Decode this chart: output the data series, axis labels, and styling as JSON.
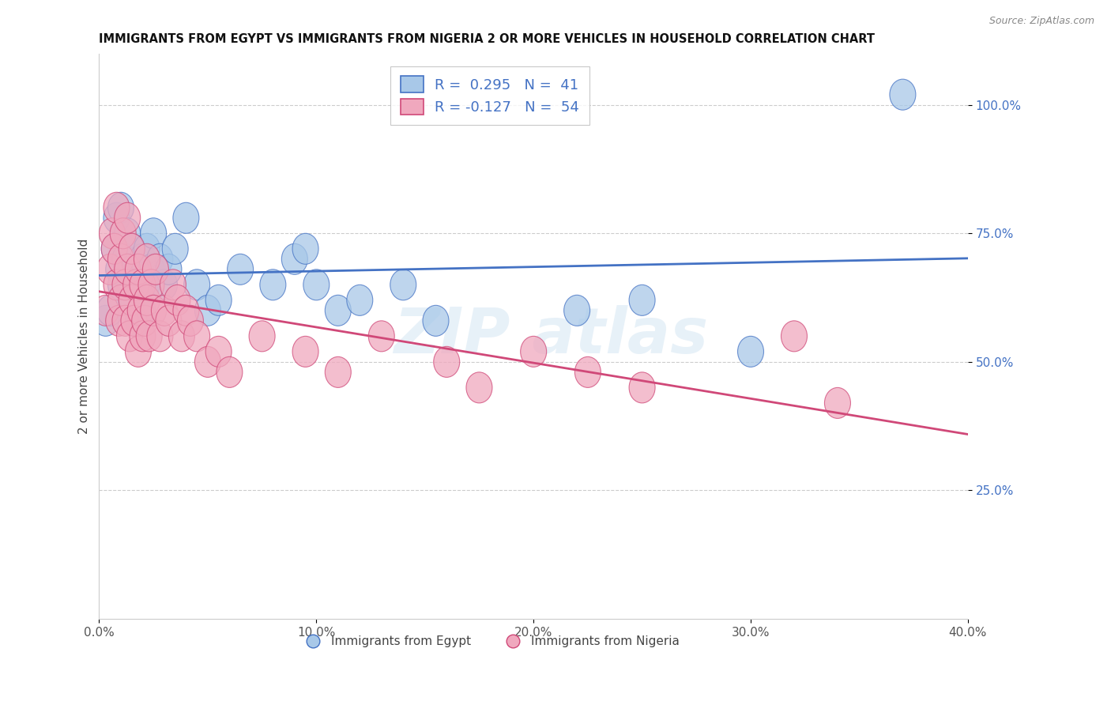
{
  "title": "IMMIGRANTS FROM EGYPT VS IMMIGRANTS FROM NIGERIA 2 OR MORE VEHICLES IN HOUSEHOLD CORRELATION CHART",
  "source": "Source: ZipAtlas.com",
  "ylabel": "2 or more Vehicles in Household",
  "color_egypt": "#a8c8e8",
  "color_nigeria": "#f0a8be",
  "line_color_egypt": "#4472c4",
  "line_color_nigeria": "#d04878",
  "legend_label_egypt": "Immigrants from Egypt",
  "legend_label_nigeria": "Immigrants from Nigeria",
  "R_egypt": 0.295,
  "N_egypt": 41,
  "R_nigeria": -0.127,
  "N_nigeria": 54,
  "xlim": [
    0.0,
    0.4
  ],
  "ylim": [
    0.0,
    1.1
  ],
  "yticks": [
    0.25,
    0.5,
    0.75,
    1.0
  ],
  "ytick_labels": [
    "25.0%",
    "50.0%",
    "75.0%",
    "100.0%"
  ],
  "xticks": [
    0.0,
    0.1,
    0.2,
    0.3,
    0.4
  ],
  "xtick_labels": [
    "0.0%",
    "10.0%",
    "20.0%",
    "30.0%",
    "40.0%"
  ],
  "egypt_x": [
    0.003,
    0.005,
    0.007,
    0.008,
    0.009,
    0.01,
    0.01,
    0.012,
    0.013,
    0.015,
    0.015,
    0.016,
    0.018,
    0.018,
    0.02,
    0.02,
    0.022,
    0.022,
    0.024,
    0.025,
    0.028,
    0.03,
    0.032,
    0.035,
    0.04,
    0.045,
    0.05,
    0.055,
    0.065,
    0.08,
    0.09,
    0.095,
    0.1,
    0.11,
    0.12,
    0.14,
    0.155,
    0.22,
    0.25,
    0.3,
    0.37
  ],
  "egypt_y": [
    0.58,
    0.6,
    0.72,
    0.78,
    0.68,
    0.65,
    0.8,
    0.7,
    0.75,
    0.62,
    0.72,
    0.68,
    0.58,
    0.65,
    0.6,
    0.7,
    0.65,
    0.72,
    0.68,
    0.75,
    0.7,
    0.65,
    0.68,
    0.72,
    0.78,
    0.65,
    0.6,
    0.62,
    0.68,
    0.65,
    0.7,
    0.72,
    0.65,
    0.6,
    0.62,
    0.65,
    0.58,
    0.6,
    0.62,
    0.52,
    1.02
  ],
  "nigeria_x": [
    0.003,
    0.005,
    0.006,
    0.007,
    0.008,
    0.008,
    0.009,
    0.01,
    0.01,
    0.011,
    0.012,
    0.012,
    0.013,
    0.013,
    0.014,
    0.015,
    0.015,
    0.016,
    0.017,
    0.018,
    0.018,
    0.019,
    0.02,
    0.02,
    0.021,
    0.022,
    0.022,
    0.023,
    0.024,
    0.025,
    0.026,
    0.028,
    0.03,
    0.032,
    0.034,
    0.036,
    0.038,
    0.04,
    0.042,
    0.045,
    0.05,
    0.055,
    0.06,
    0.075,
    0.095,
    0.11,
    0.13,
    0.16,
    0.175,
    0.2,
    0.225,
    0.25,
    0.32,
    0.34
  ],
  "nigeria_y": [
    0.6,
    0.68,
    0.75,
    0.72,
    0.65,
    0.8,
    0.58,
    0.62,
    0.7,
    0.75,
    0.58,
    0.65,
    0.68,
    0.78,
    0.55,
    0.62,
    0.72,
    0.58,
    0.65,
    0.52,
    0.68,
    0.6,
    0.55,
    0.65,
    0.58,
    0.62,
    0.7,
    0.55,
    0.65,
    0.6,
    0.68,
    0.55,
    0.6,
    0.58,
    0.65,
    0.62,
    0.55,
    0.6,
    0.58,
    0.55,
    0.5,
    0.52,
    0.48,
    0.55,
    0.52,
    0.48,
    0.55,
    0.5,
    0.45,
    0.52,
    0.48,
    0.45,
    0.55,
    0.42
  ]
}
